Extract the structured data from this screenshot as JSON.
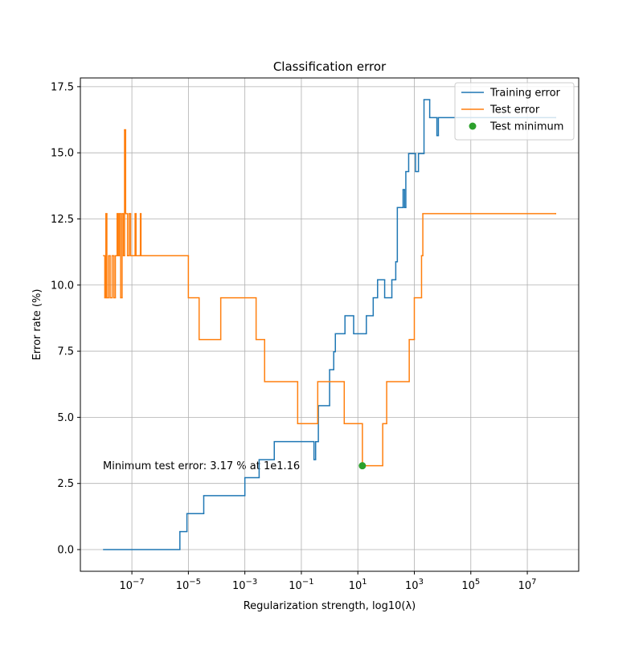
{
  "chart_data": {
    "type": "step-line",
    "title": "Classification error",
    "x_label": "Regularization strength, log10(λ)",
    "y_label": "Error rate (%)",
    "xscale": "log",
    "grid": true,
    "legend": "upper right",
    "xlim": [
      1.5e-09,
      660000000.0
    ],
    "ylim": [
      -0.82,
      17.83
    ],
    "xticks": [
      {
        "value": 1e-07,
        "label": "10−7"
      },
      {
        "value": 1e-05,
        "label": "10−5"
      },
      {
        "value": 0.001,
        "label": "10−3"
      },
      {
        "value": 0.1,
        "label": "10−1"
      },
      {
        "value": 10,
        "label": "101"
      },
      {
        "value": 1000,
        "label": "103"
      },
      {
        "value": 100000,
        "label": "105"
      },
      {
        "value": 10000000,
        "label": "107"
      }
    ],
    "yticks": [
      {
        "value": 0,
        "label": "0.0"
      },
      2.5,
      {
        "value": 5,
        "label": "5.0"
      },
      7.5,
      {
        "value": 10,
        "label": "10.0"
      },
      12.5,
      {
        "value": 15,
        "label": "15.0"
      },
      17.5
    ],
    "series": [
      {
        "name": "Training error",
        "color": "#1f77b4",
        "x": [
          1e-08,
          5e-06,
          8.9e-06,
          3.5e-05,
          0.001,
          0.0032,
          0.011,
          0.28,
          0.32,
          0.4,
          1.0,
          1.4,
          1.6,
          3.5,
          7.1,
          20,
          35,
          50,
          89,
          160,
          220,
          250,
          400,
          450,
          500,
          630,
          1100,
          1400,
          2200,
          3500,
          6300,
          7100,
          100000000.0
        ],
        "values": [
          0,
          0.68,
          1.36,
          2.04,
          2.72,
          3.4,
          4.08,
          3.4,
          4.08,
          5.44,
          6.8,
          7.48,
          8.16,
          8.84,
          8.16,
          8.84,
          9.52,
          10.2,
          9.52,
          10.2,
          10.88,
          12.93,
          13.61,
          12.93,
          14.29,
          14.97,
          14.29,
          14.97,
          17.01,
          16.33,
          15.65,
          16.33,
          16.33
        ]
      },
      {
        "name": "Test error",
        "color": "#ff7f0e",
        "x": [
          1e-08,
          1.1e-08,
          1.2e-08,
          1.3e-08,
          1.5e-08,
          1.7e-08,
          2e-08,
          2.3e-08,
          2.6e-08,
          3e-08,
          3.3e-08,
          3.6e-08,
          4e-08,
          4.5e-08,
          5e-08,
          5.5e-08,
          6e-08,
          7e-08,
          8e-08,
          9e-08,
          1.3e-07,
          1.4e-07,
          2e-07,
          2.1e-07,
          1e-05,
          2.4e-05,
          0.00014,
          0.0025,
          0.005,
          0.074,
          0.38,
          3.3,
          14.5,
          76,
          105,
          660,
          1000,
          1800,
          2000,
          100000000.0
        ],
        "values": [
          11.11,
          9.52,
          12.7,
          9.52,
          11.11,
          9.52,
          11.11,
          9.52,
          11.11,
          12.7,
          11.11,
          12.7,
          9.52,
          12.7,
          11.11,
          15.87,
          12.7,
          11.11,
          12.7,
          11.11,
          12.7,
          11.11,
          12.7,
          11.11,
          9.52,
          7.94,
          9.52,
          7.94,
          6.35,
          4.76,
          6.35,
          4.76,
          3.17,
          4.76,
          6.35,
          7.94,
          9.52,
          11.11,
          12.7,
          12.7
        ]
      }
    ],
    "points": [
      {
        "name": "Test minimum",
        "color": "#2ca02c",
        "x": 14.45,
        "y": 3.17
      }
    ],
    "annotation": "Minimum test error: 3.17 % at 1e1.16"
  }
}
